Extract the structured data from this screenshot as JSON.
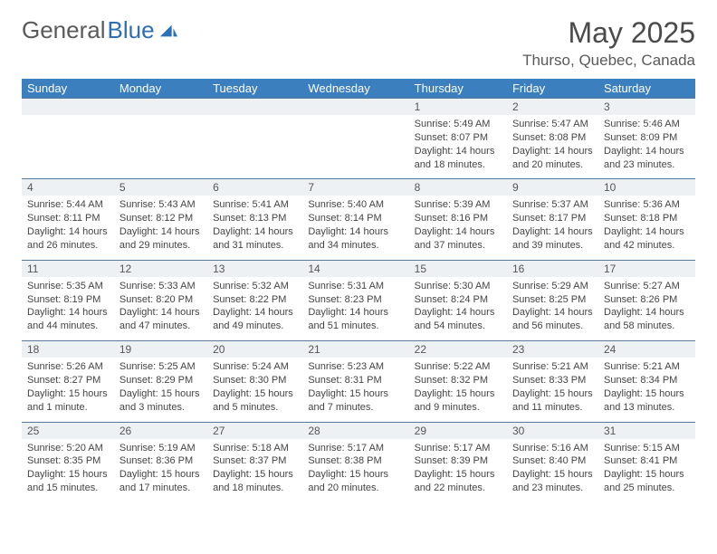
{
  "logo": {
    "text_gray": "General",
    "text_blue": "Blue"
  },
  "header": {
    "month": "May 2025",
    "location": "Thurso, Quebec, Canada"
  },
  "days": [
    "Sunday",
    "Monday",
    "Tuesday",
    "Wednesday",
    "Thursday",
    "Friday",
    "Saturday"
  ],
  "colors": {
    "header_bar": "#3b7fbf",
    "daynum_bg": "#eef1f3",
    "rule": "#5a7a9a",
    "logo_blue": "#2d6fb5",
    "text": "#444444"
  },
  "weeks": [
    [
      {
        "n": "",
        "sr": "",
        "ss": "",
        "dl": ""
      },
      {
        "n": "",
        "sr": "",
        "ss": "",
        "dl": ""
      },
      {
        "n": "",
        "sr": "",
        "ss": "",
        "dl": ""
      },
      {
        "n": "",
        "sr": "",
        "ss": "",
        "dl": ""
      },
      {
        "n": "1",
        "sr": "Sunrise: 5:49 AM",
        "ss": "Sunset: 8:07 PM",
        "dl": "Daylight: 14 hours and 18 minutes."
      },
      {
        "n": "2",
        "sr": "Sunrise: 5:47 AM",
        "ss": "Sunset: 8:08 PM",
        "dl": "Daylight: 14 hours and 20 minutes."
      },
      {
        "n": "3",
        "sr": "Sunrise: 5:46 AM",
        "ss": "Sunset: 8:09 PM",
        "dl": "Daylight: 14 hours and 23 minutes."
      }
    ],
    [
      {
        "n": "4",
        "sr": "Sunrise: 5:44 AM",
        "ss": "Sunset: 8:11 PM",
        "dl": "Daylight: 14 hours and 26 minutes."
      },
      {
        "n": "5",
        "sr": "Sunrise: 5:43 AM",
        "ss": "Sunset: 8:12 PM",
        "dl": "Daylight: 14 hours and 29 minutes."
      },
      {
        "n": "6",
        "sr": "Sunrise: 5:41 AM",
        "ss": "Sunset: 8:13 PM",
        "dl": "Daylight: 14 hours and 31 minutes."
      },
      {
        "n": "7",
        "sr": "Sunrise: 5:40 AM",
        "ss": "Sunset: 8:14 PM",
        "dl": "Daylight: 14 hours and 34 minutes."
      },
      {
        "n": "8",
        "sr": "Sunrise: 5:39 AM",
        "ss": "Sunset: 8:16 PM",
        "dl": "Daylight: 14 hours and 37 minutes."
      },
      {
        "n": "9",
        "sr": "Sunrise: 5:37 AM",
        "ss": "Sunset: 8:17 PM",
        "dl": "Daylight: 14 hours and 39 minutes."
      },
      {
        "n": "10",
        "sr": "Sunrise: 5:36 AM",
        "ss": "Sunset: 8:18 PM",
        "dl": "Daylight: 14 hours and 42 minutes."
      }
    ],
    [
      {
        "n": "11",
        "sr": "Sunrise: 5:35 AM",
        "ss": "Sunset: 8:19 PM",
        "dl": "Daylight: 14 hours and 44 minutes."
      },
      {
        "n": "12",
        "sr": "Sunrise: 5:33 AM",
        "ss": "Sunset: 8:20 PM",
        "dl": "Daylight: 14 hours and 47 minutes."
      },
      {
        "n": "13",
        "sr": "Sunrise: 5:32 AM",
        "ss": "Sunset: 8:22 PM",
        "dl": "Daylight: 14 hours and 49 minutes."
      },
      {
        "n": "14",
        "sr": "Sunrise: 5:31 AM",
        "ss": "Sunset: 8:23 PM",
        "dl": "Daylight: 14 hours and 51 minutes."
      },
      {
        "n": "15",
        "sr": "Sunrise: 5:30 AM",
        "ss": "Sunset: 8:24 PM",
        "dl": "Daylight: 14 hours and 54 minutes."
      },
      {
        "n": "16",
        "sr": "Sunrise: 5:29 AM",
        "ss": "Sunset: 8:25 PM",
        "dl": "Daylight: 14 hours and 56 minutes."
      },
      {
        "n": "17",
        "sr": "Sunrise: 5:27 AM",
        "ss": "Sunset: 8:26 PM",
        "dl": "Daylight: 14 hours and 58 minutes."
      }
    ],
    [
      {
        "n": "18",
        "sr": "Sunrise: 5:26 AM",
        "ss": "Sunset: 8:27 PM",
        "dl": "Daylight: 15 hours and 1 minute."
      },
      {
        "n": "19",
        "sr": "Sunrise: 5:25 AM",
        "ss": "Sunset: 8:29 PM",
        "dl": "Daylight: 15 hours and 3 minutes."
      },
      {
        "n": "20",
        "sr": "Sunrise: 5:24 AM",
        "ss": "Sunset: 8:30 PM",
        "dl": "Daylight: 15 hours and 5 minutes."
      },
      {
        "n": "21",
        "sr": "Sunrise: 5:23 AM",
        "ss": "Sunset: 8:31 PM",
        "dl": "Daylight: 15 hours and 7 minutes."
      },
      {
        "n": "22",
        "sr": "Sunrise: 5:22 AM",
        "ss": "Sunset: 8:32 PM",
        "dl": "Daylight: 15 hours and 9 minutes."
      },
      {
        "n": "23",
        "sr": "Sunrise: 5:21 AM",
        "ss": "Sunset: 8:33 PM",
        "dl": "Daylight: 15 hours and 11 minutes."
      },
      {
        "n": "24",
        "sr": "Sunrise: 5:21 AM",
        "ss": "Sunset: 8:34 PM",
        "dl": "Daylight: 15 hours and 13 minutes."
      }
    ],
    [
      {
        "n": "25",
        "sr": "Sunrise: 5:20 AM",
        "ss": "Sunset: 8:35 PM",
        "dl": "Daylight: 15 hours and 15 minutes."
      },
      {
        "n": "26",
        "sr": "Sunrise: 5:19 AM",
        "ss": "Sunset: 8:36 PM",
        "dl": "Daylight: 15 hours and 17 minutes."
      },
      {
        "n": "27",
        "sr": "Sunrise: 5:18 AM",
        "ss": "Sunset: 8:37 PM",
        "dl": "Daylight: 15 hours and 18 minutes."
      },
      {
        "n": "28",
        "sr": "Sunrise: 5:17 AM",
        "ss": "Sunset: 8:38 PM",
        "dl": "Daylight: 15 hours and 20 minutes."
      },
      {
        "n": "29",
        "sr": "Sunrise: 5:17 AM",
        "ss": "Sunset: 8:39 PM",
        "dl": "Daylight: 15 hours and 22 minutes."
      },
      {
        "n": "30",
        "sr": "Sunrise: 5:16 AM",
        "ss": "Sunset: 8:40 PM",
        "dl": "Daylight: 15 hours and 23 minutes."
      },
      {
        "n": "31",
        "sr": "Sunrise: 5:15 AM",
        "ss": "Sunset: 8:41 PM",
        "dl": "Daylight: 15 hours and 25 minutes."
      }
    ]
  ]
}
